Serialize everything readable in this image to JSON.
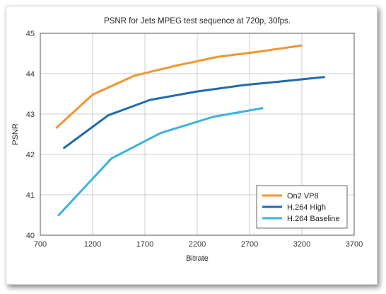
{
  "chart_data": {
    "type": "line",
    "title": "PSNR for Jets MPEG test sequence at 720p, 30fps.",
    "xlabel": "Bitrate",
    "ylabel": "PSNR",
    "xlim": [
      700,
      3700
    ],
    "ylim": [
      40,
      45
    ],
    "xticks": [
      700,
      1200,
      1700,
      2200,
      2700,
      3200,
      3700
    ],
    "yticks": [
      40,
      41,
      42,
      43,
      44,
      45
    ],
    "grid": true,
    "legend_position": "bottom-right",
    "series": [
      {
        "name": "On2 VP8",
        "color": "#f0962e",
        "points": [
          [
            850,
            42.65
          ],
          [
            1200,
            43.48
          ],
          [
            1600,
            43.95
          ],
          [
            2000,
            44.2
          ],
          [
            2400,
            44.42
          ],
          [
            2800,
            44.55
          ],
          [
            3200,
            44.7
          ]
        ]
      },
      {
        "name": "H.264 High",
        "color": "#1f6bb0",
        "points": [
          [
            920,
            42.15
          ],
          [
            1350,
            42.97
          ],
          [
            1750,
            43.35
          ],
          [
            2200,
            43.56
          ],
          [
            2650,
            43.72
          ],
          [
            3050,
            43.82
          ],
          [
            3420,
            43.92
          ]
        ]
      },
      {
        "name": "H.264 Baseline",
        "color": "#3ab3dd",
        "points": [
          [
            870,
            40.48
          ],
          [
            1380,
            41.9
          ],
          [
            1850,
            42.53
          ],
          [
            2350,
            42.93
          ],
          [
            2830,
            43.15
          ]
        ]
      }
    ]
  }
}
